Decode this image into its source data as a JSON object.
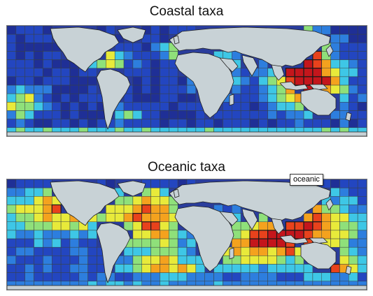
{
  "panels": {
    "coastal": {
      "title": "Coastal taxa"
    },
    "oceanic": {
      "title": "Oceanic taxa"
    }
  },
  "tooltip": {
    "text": "oceanic"
  },
  "colors": {
    "land": "#c8d2d6",
    "gridline": "#3b4340",
    "palette": [
      "#1f2f96",
      "#2346c0",
      "#2d7ede",
      "#3ec7e6",
      "#8fe07a",
      "#e8ea3a",
      "#f4a21e",
      "#e8421c",
      "#c4161c"
    ]
  }
}
